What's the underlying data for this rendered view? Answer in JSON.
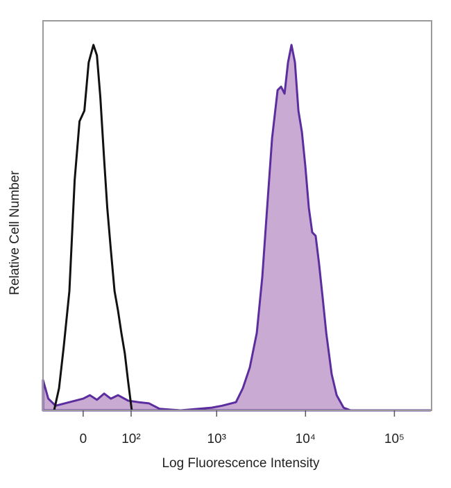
{
  "chart_data": {
    "type": "histogram-overlay",
    "xlabel": "Log Fluorescence Intensity",
    "ylabel": "Relative Cell Number",
    "xscale": "biexponential",
    "xlim": [
      -78,
      262000
    ],
    "ylim": [
      0,
      100
    ],
    "xticks": [
      0,
      {
        "value": 100,
        "label": "10²"
      },
      {
        "value": 1000,
        "label": "10³"
      },
      {
        "value": 10000,
        "label": "10⁴"
      },
      {
        "value": 100000,
        "label": "10⁵"
      }
    ],
    "series": [
      {
        "color": "#111111",
        "fill": "none",
        "x": [
          -52,
          -42,
          -33,
          -23,
          -14,
          -6,
          2,
          9,
          17,
          23,
          29,
          36,
          42,
          49,
          57,
          65,
          73,
          82,
          91,
          102
        ],
        "values": [
          0,
          5.7,
          16.4,
          30.6,
          59.1,
          74.2,
          76.9,
          89.3,
          93.8,
          91.1,
          80.4,
          64.4,
          52,
          41.3,
          30.6,
          25.6,
          19.9,
          14.6,
          7.5,
          0
        ]
      },
      {
        "color": "#5b2d9e",
        "fill": "#c9aad2",
        "x": [
          -78,
          -65,
          -49,
          -23,
          0,
          11,
          23,
          36,
          49,
          65,
          91,
          125,
          168,
          224,
          389,
          878,
          1150,
          1650,
          1970,
          2360,
          2830,
          3260,
          3700,
          4200,
          4850,
          5310,
          5810,
          6360,
          6950,
          7610,
          8320,
          9100,
          9960,
          10900,
          11900,
          13000,
          14200,
          15600,
          17100,
          19700,
          22400,
          26800,
          32100,
          254000
        ],
        "values": [
          7.8,
          3,
          1.2,
          2.1,
          3,
          3.9,
          2.7,
          4.3,
          3,
          3.9,
          2.5,
          2.1,
          1.8,
          0.4,
          0,
          0.7,
          1.2,
          2.1,
          5.7,
          11,
          19.9,
          34.2,
          52,
          69.8,
          82.2,
          83.1,
          81.3,
          89.3,
          93.8,
          89.3,
          76.9,
          71.5,
          62.6,
          52,
          45.7,
          44.8,
          37.7,
          28.8,
          19.9,
          9.3,
          3.9,
          0.7,
          0,
          0
        ]
      }
    ]
  }
}
